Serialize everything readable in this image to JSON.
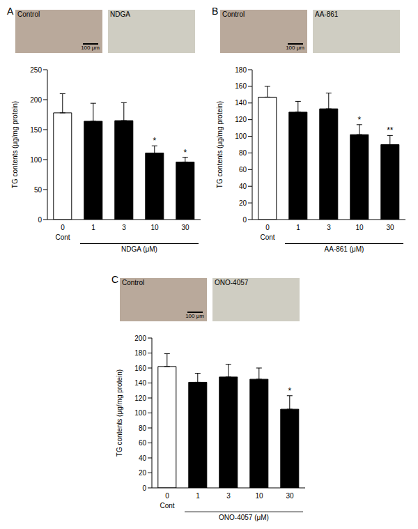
{
  "chart_data": [
    {
      "type": "bar",
      "panel": "A",
      "image_labels": [
        "Control",
        "NDGA"
      ],
      "scale_bar": "100 μm",
      "categories": [
        "0",
        "1",
        "3",
        "10",
        "30"
      ],
      "values": [
        178,
        164,
        165,
        111,
        96
      ],
      "errors": [
        32,
        30,
        30,
        12,
        8
      ],
      "colors": [
        "#ffffff",
        "#000000",
        "#000000",
        "#000000",
        "#000000"
      ],
      "significance": [
        null,
        null,
        null,
        "*",
        "*"
      ],
      "control_label": "Cont",
      "x_label": "NDGA (μM)",
      "y_label": "TG contents (μg/mg protein)",
      "ylim": [
        0,
        250
      ],
      "yticks": [
        0,
        50,
        100,
        150,
        200,
        250
      ]
    },
    {
      "type": "bar",
      "panel": "B",
      "image_labels": [
        "Control",
        "AA-861"
      ],
      "scale_bar": "100 μm",
      "categories": [
        "0",
        "1",
        "3",
        "10",
        "30"
      ],
      "values": [
        147,
        129,
        133,
        102,
        90
      ],
      "errors": [
        13,
        13,
        19,
        12,
        11
      ],
      "colors": [
        "#ffffff",
        "#000000",
        "#000000",
        "#000000",
        "#000000"
      ],
      "significance": [
        null,
        null,
        null,
        "*",
        "**"
      ],
      "control_label": "Cont",
      "x_label": "AA-861 (μM)",
      "y_label": "TG contents (μg/mg protein)",
      "ylim": [
        0,
        180
      ],
      "yticks": [
        0,
        20,
        40,
        60,
        80,
        100,
        120,
        140,
        160,
        180
      ]
    },
    {
      "type": "bar",
      "panel": "C",
      "image_labels": [
        "Control",
        "ONO-4057"
      ],
      "scale_bar": "100 μm",
      "categories": [
        "0",
        "1",
        "3",
        "10",
        "30"
      ],
      "values": [
        162,
        141,
        148,
        145,
        105
      ],
      "errors": [
        17,
        12,
        17,
        15,
        18
      ],
      "colors": [
        "#ffffff",
        "#000000",
        "#000000",
        "#000000",
        "#000000"
      ],
      "significance": [
        null,
        null,
        null,
        null,
        "*"
      ],
      "control_label": "Cont",
      "x_label": "ONO-4057 (μM)",
      "y_label": "TG contents (μg/mg protein)",
      "ylim": [
        0,
        200
      ],
      "yticks": [
        0,
        20,
        40,
        60,
        80,
        100,
        120,
        140,
        160,
        180,
        200
      ]
    }
  ]
}
